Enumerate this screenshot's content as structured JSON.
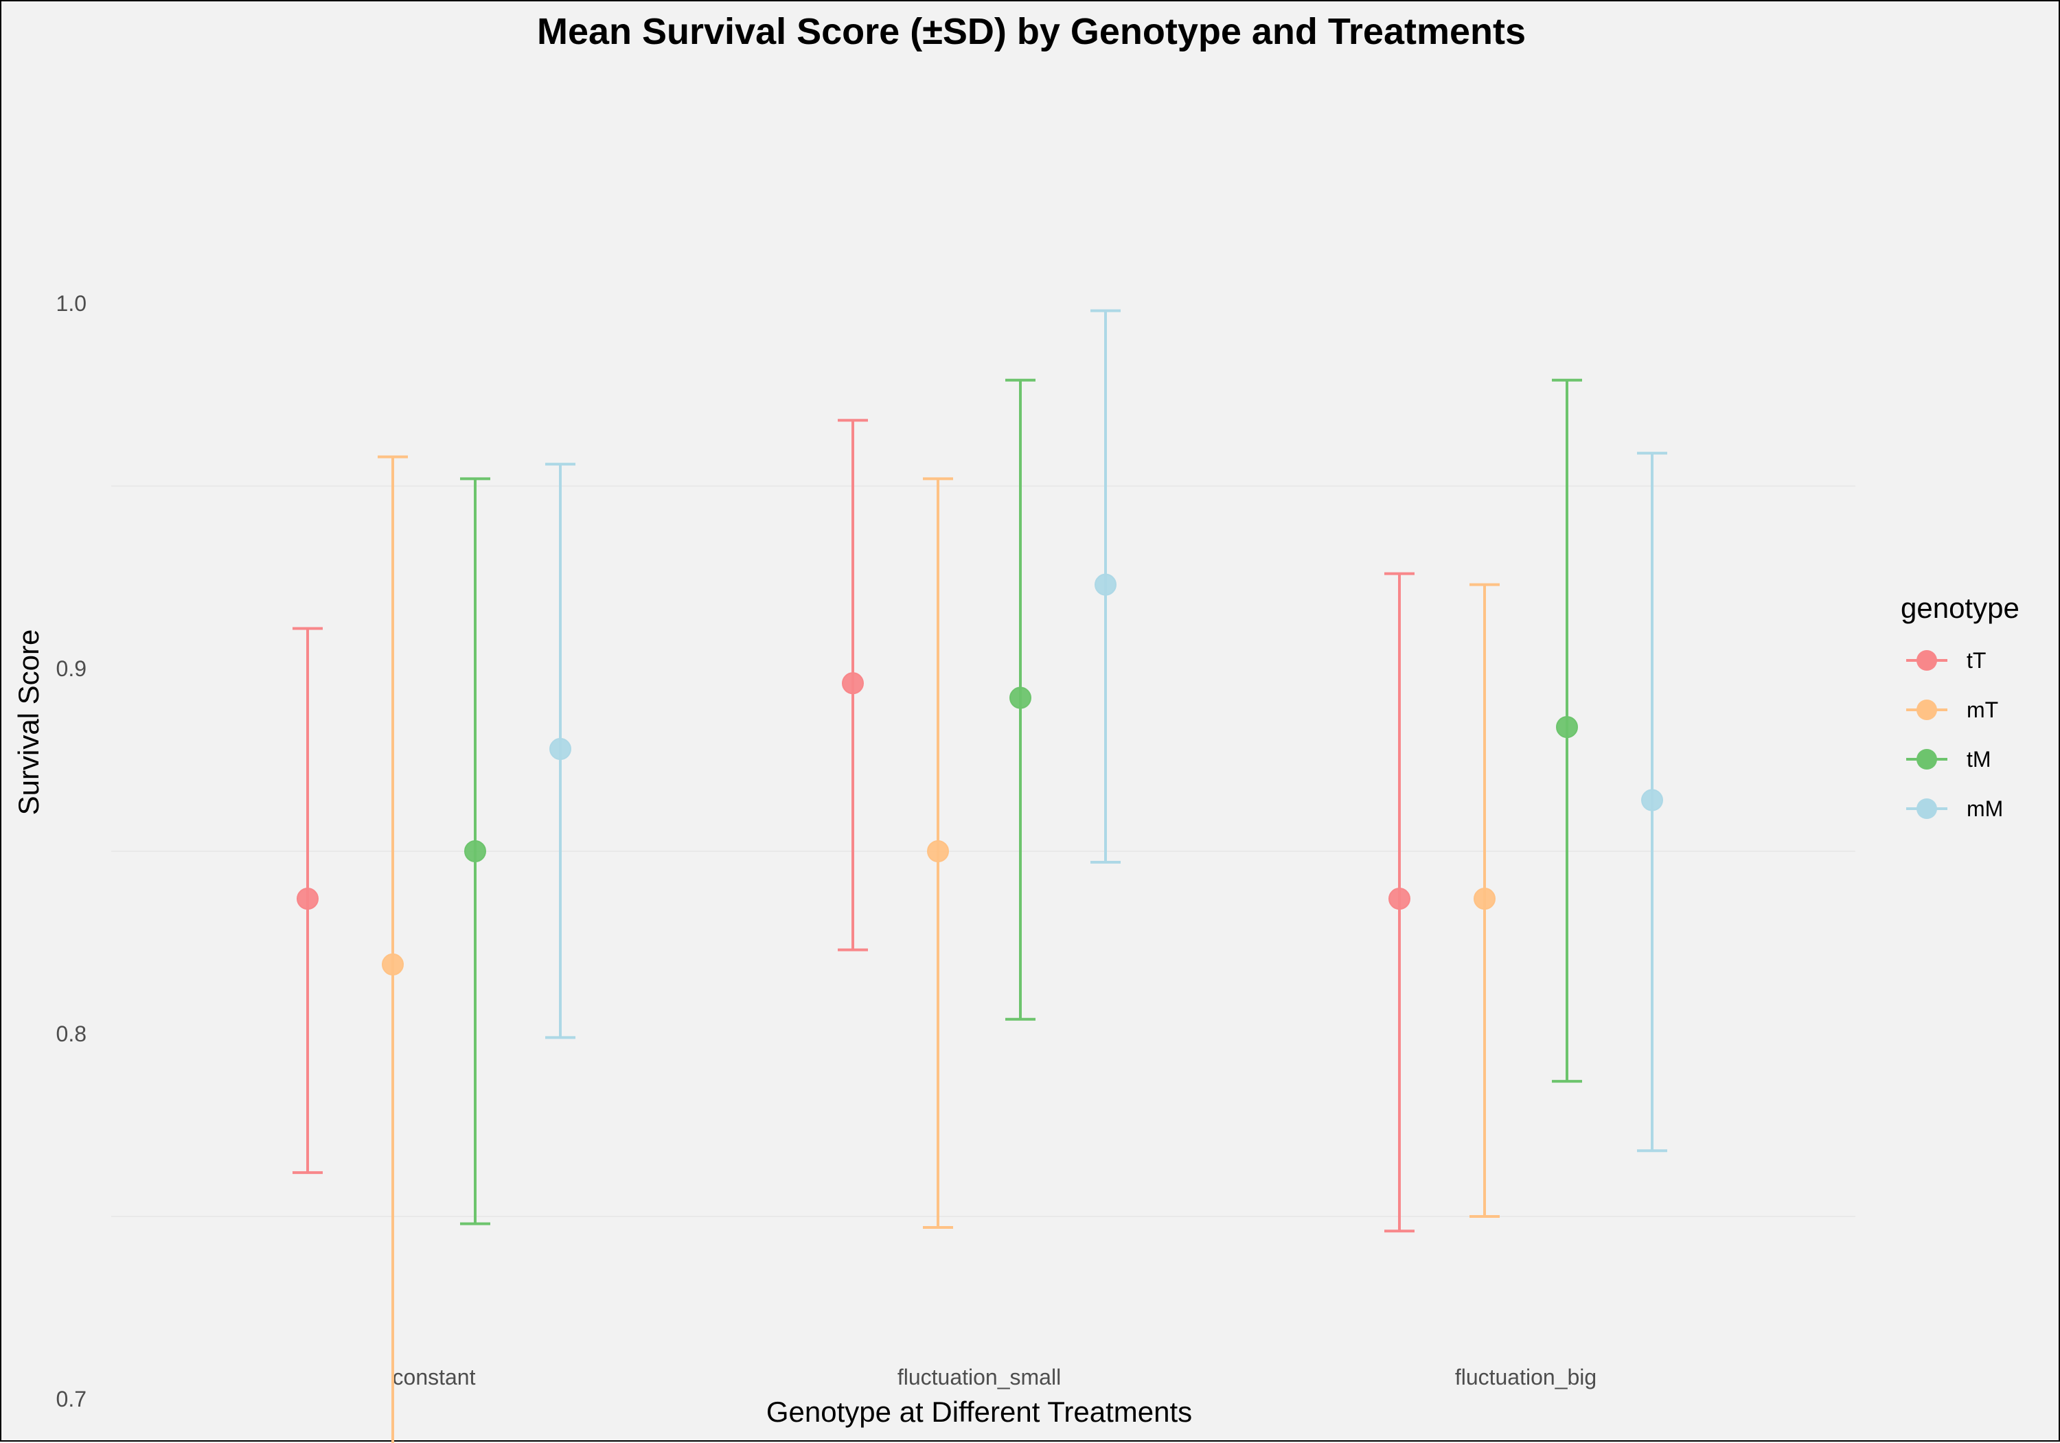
{
  "chart_data": {
    "type": "scatter",
    "title": "Mean Survival Score (±SD) by Genotype and Treatments",
    "xlabel": "Genotype at Different Treatments",
    "ylabel": "Survival Score",
    "categories": [
      "constant",
      "fluctuation_small",
      "fluctuation_big"
    ],
    "ylim": [
      0.66,
      1.02
    ],
    "yticks": [
      0.7,
      0.8,
      0.9,
      1.0
    ],
    "ytick_labels": [
      "0.7",
      "0.8",
      "0.9",
      "1.0"
    ],
    "grid": true,
    "legend": {
      "title": "genotype",
      "placement": "right"
    },
    "series": [
      {
        "name": "tT",
        "color": "#f8878a",
        "mean": [
          0.837,
          0.896,
          0.837
        ],
        "lower": [
          0.762,
          0.823,
          0.746
        ],
        "upper": [
          0.911,
          0.968,
          0.926
        ]
      },
      {
        "name": "mT",
        "color": "#ffc285",
        "mean": [
          0.819,
          0.85,
          0.837
        ],
        "lower": [
          0.678,
          0.747,
          0.75
        ],
        "upper": [
          0.958,
          0.952,
          0.923
        ]
      },
      {
        "name": "tM",
        "color": "#6dc46d",
        "mean": [
          0.85,
          0.892,
          0.884
        ],
        "lower": [
          0.748,
          0.804,
          0.787
        ],
        "upper": [
          0.952,
          0.979,
          0.979
        ]
      },
      {
        "name": "mM",
        "color": "#add8e6",
        "mean": [
          0.878,
          0.923,
          0.864
        ],
        "lower": [
          0.799,
          0.847,
          0.768
        ],
        "upper": [
          0.956,
          0.998,
          0.959
        ]
      }
    ]
  }
}
